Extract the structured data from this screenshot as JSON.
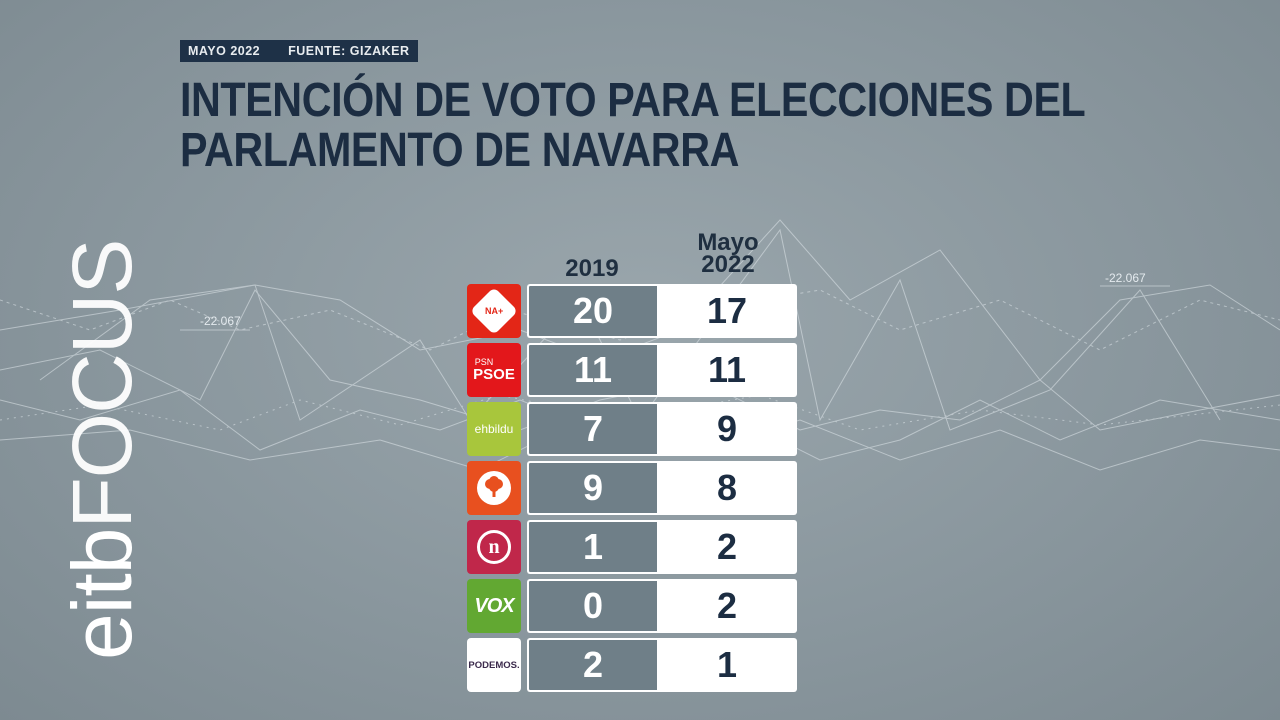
{
  "header": {
    "date_tag": "MAYO 2022",
    "source_tag": "FUENTE: GIZAKER",
    "title_line1": "INTENCIÓN DE VOTO PARA ELECCIONES DEL",
    "title_line2": "PARLAMENTO DE NAVARRA"
  },
  "brand": {
    "part1": "eitb",
    "part2": "FOCUS"
  },
  "background": {
    "label_left": "-22.067",
    "label_right": "-22.067"
  },
  "chart_data": {
    "type": "table",
    "title": "INTENCIÓN DE VOTO PARA ELECCIONES DEL PARLAMENTO DE NAVARRA",
    "columns": [
      "2019",
      "Mayo 2022"
    ],
    "rows": [
      {
        "party": "NA+",
        "logo_text": "NA+",
        "color": "#e32617",
        "values": [
          20,
          17
        ]
      },
      {
        "party": "PSN PSOE",
        "logo_text_top": "PSN",
        "logo_text": "PSOE",
        "color": "#e3171b",
        "values": [
          11,
          11
        ]
      },
      {
        "party": "EH Bildu",
        "logo_text": "ehbildu",
        "color": "#a8c63c",
        "values": [
          7,
          9
        ]
      },
      {
        "party": "Geroa Bai",
        "logo_text": "",
        "color": "#e8501f",
        "values": [
          9,
          8
        ]
      },
      {
        "party": "Izquierda-Ezkerra",
        "logo_text": "n",
        "color": "#c0274a",
        "values": [
          1,
          2
        ]
      },
      {
        "party": "VOX",
        "logo_text": "VOX",
        "color": "#62a832",
        "values": [
          0,
          2
        ]
      },
      {
        "party": "Podemos",
        "logo_text": "PODEMOS.",
        "color": "#ffffff",
        "values": [
          2,
          1
        ]
      }
    ]
  }
}
